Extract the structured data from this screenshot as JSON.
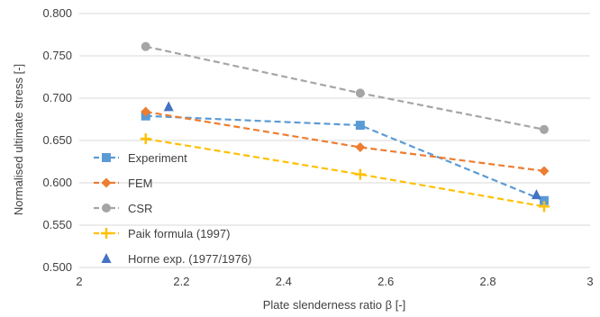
{
  "chart_data": {
    "type": "line",
    "title": "",
    "xlabel": "Plate slenderness ratio β [-]",
    "ylabel": "Normalised ultimate stress [-]",
    "xlim": [
      2,
      3
    ],
    "ylim": [
      0.5,
      0.8
    ],
    "x_ticks": [
      "2",
      "2.2",
      "2.4",
      "2.6",
      "2.8",
      "3"
    ],
    "y_ticks": [
      "0.500",
      "0.550",
      "0.600",
      "0.650",
      "0.700",
      "0.750",
      "0.800"
    ],
    "grid": "horizontal",
    "legend_position": "left",
    "series": [
      {
        "name": "Experiment",
        "color": "#5B9BD5",
        "marker": "square",
        "line": "dashed",
        "points": [
          [
            2.13,
            0.679
          ],
          [
            2.55,
            0.668
          ],
          [
            2.91,
            0.579
          ]
        ]
      },
      {
        "name": "FEM",
        "color": "#ED7D31",
        "marker": "diamond",
        "line": "dashed",
        "points": [
          [
            2.13,
            0.684
          ],
          [
            2.55,
            0.642
          ],
          [
            2.91,
            0.614
          ]
        ]
      },
      {
        "name": "CSR",
        "color": "#A5A5A5",
        "marker": "circle",
        "line": "dashed",
        "points": [
          [
            2.13,
            0.761
          ],
          [
            2.55,
            0.706
          ],
          [
            2.91,
            0.663
          ]
        ]
      },
      {
        "name": "Paik formula (1997)",
        "color": "#FFC000",
        "marker": "plus",
        "line": "dashed",
        "points": [
          [
            2.13,
            0.652
          ],
          [
            2.55,
            0.61
          ],
          [
            2.91,
            0.572
          ]
        ]
      },
      {
        "name": "Horne exp. (1977/1976)",
        "color": "#4472C4",
        "marker": "triangle",
        "line": "none",
        "points": [
          [
            2.175,
            0.69
          ],
          [
            2.895,
            0.586
          ]
        ]
      }
    ]
  }
}
